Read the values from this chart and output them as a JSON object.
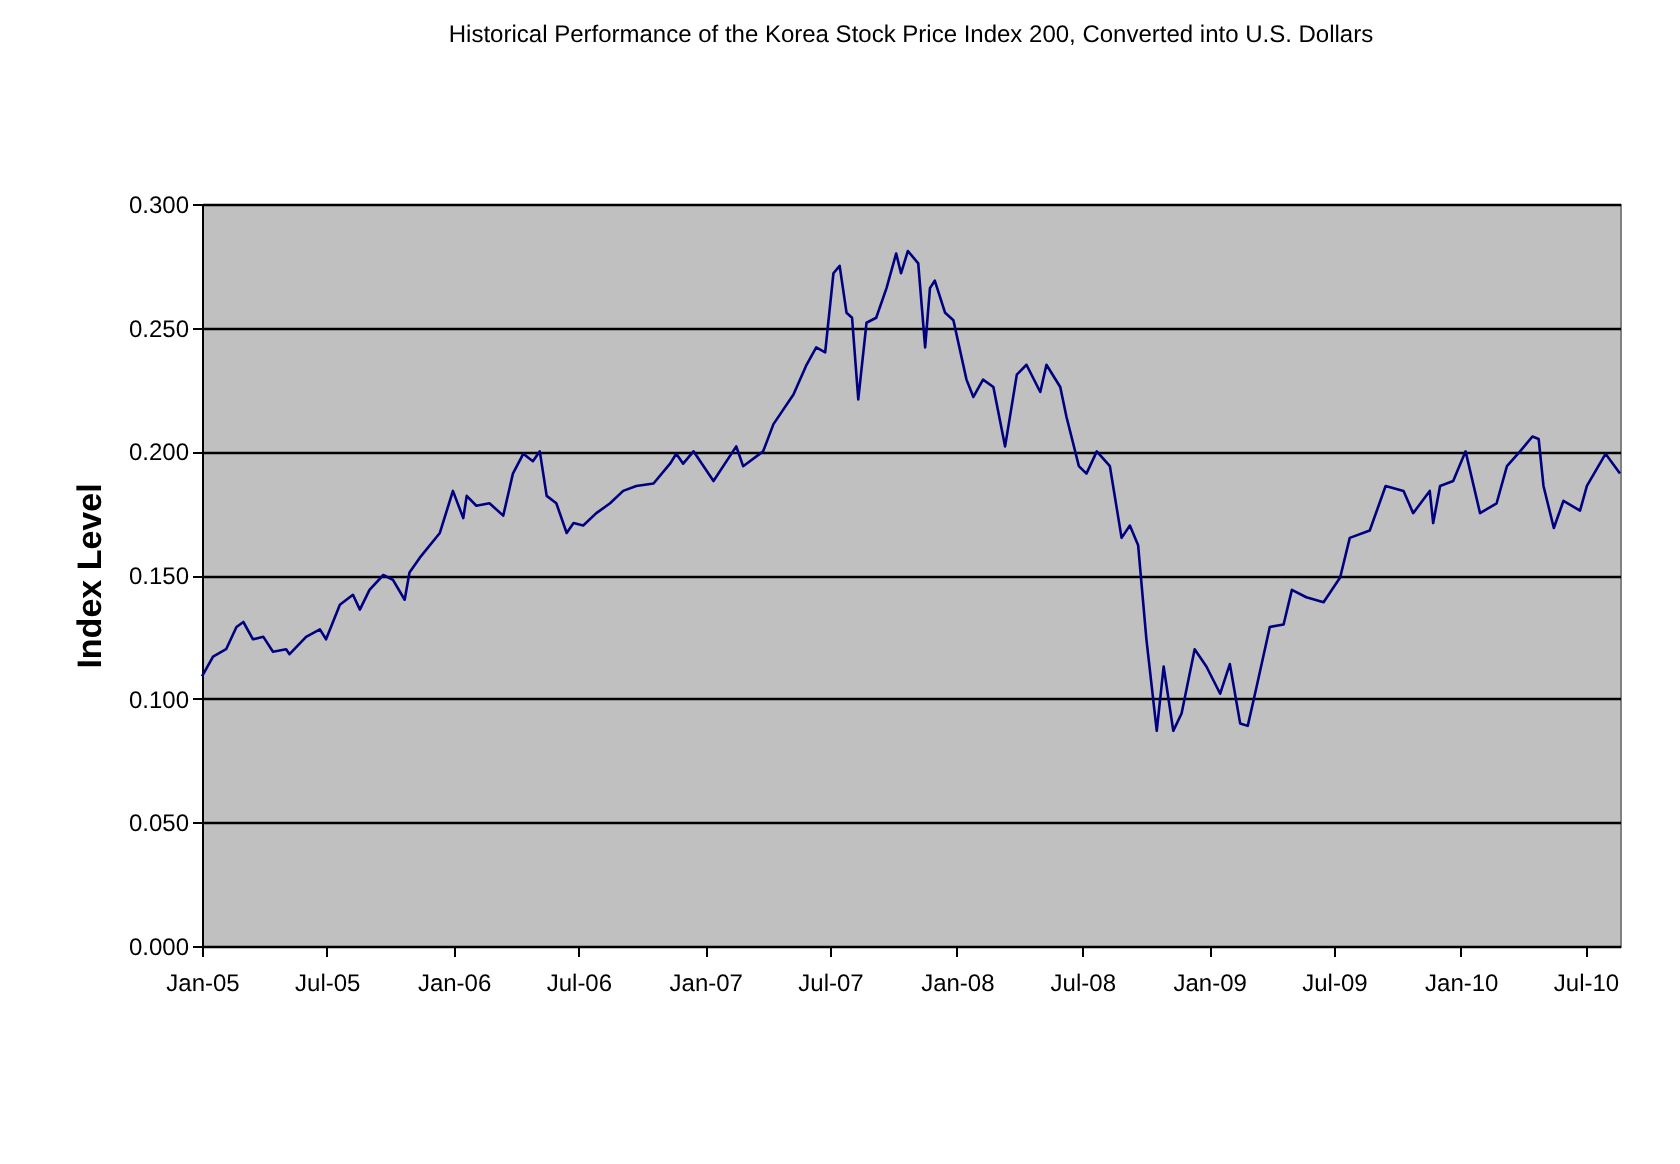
{
  "chart_data": {
    "type": "line",
    "title": "Historical Performance of the Korea Stock Price Index 200, Converted into U.S. Dollars",
    "ylabel": "Index Level",
    "x": [
      "2005-01-01",
      "2005-01-17",
      "2005-02-05",
      "2005-02-20",
      "2005-03-02",
      "2005-03-16",
      "2005-03-31",
      "2005-04-14",
      "2005-05-03",
      "2005-05-08",
      "2005-06-01",
      "2005-06-21",
      "2005-06-30",
      "2005-07-20",
      "2005-08-08",
      "2005-08-18",
      "2005-09-01",
      "2005-09-21",
      "2005-10-05",
      "2005-10-22",
      "2005-10-29",
      "2005-11-13",
      "2005-12-12",
      "2005-12-31",
      "2006-01-15",
      "2006-01-20",
      "2006-02-03",
      "2006-02-22",
      "2006-03-14",
      "2006-03-28",
      "2006-04-12",
      "2006-04-26",
      "2006-05-06",
      "2006-05-16",
      "2006-05-30",
      "2006-06-14",
      "2006-06-24",
      "2006-07-08",
      "2006-07-27",
      "2006-08-16",
      "2006-09-04",
      "2006-09-23",
      "2006-10-18",
      "2006-11-11",
      "2006-11-20",
      "2006-11-30",
      "2006-12-15",
      "2007-01-13",
      "2007-02-15",
      "2007-02-25",
      "2007-03-26",
      "2007-04-10",
      "2007-05-09",
      "2007-05-28",
      "2007-06-11",
      "2007-06-24",
      "2007-07-06",
      "2007-07-15",
      "2007-07-25",
      "2007-08-02",
      "2007-08-11",
      "2007-08-23",
      "2007-09-06",
      "2007-09-21",
      "2007-10-05",
      "2007-10-12",
      "2007-10-22",
      "2007-11-06",
      "2007-11-16",
      "2007-11-23",
      "2007-11-30",
      "2007-12-15",
      "2007-12-27",
      "2008-01-15",
      "2008-01-25",
      "2008-02-08",
      "2008-02-23",
      "2008-03-11",
      "2008-03-28",
      "2008-04-11",
      "2008-05-01",
      "2008-05-10",
      "2008-05-30",
      "2008-06-08",
      "2008-06-26",
      "2008-07-07",
      "2008-07-22",
      "2008-08-10",
      "2008-08-27",
      "2008-09-08",
      "2008-09-20",
      "2008-10-02",
      "2008-10-17",
      "2008-10-27",
      "2008-11-10",
      "2008-11-22",
      "2008-12-11",
      "2008-12-28",
      "2009-01-17",
      "2009-01-31",
      "2009-02-15",
      "2009-02-26",
      "2009-03-11",
      "2009-03-30",
      "2009-04-19",
      "2009-05-01",
      "2009-05-22",
      "2009-06-16",
      "2009-07-10",
      "2009-07-24",
      "2009-08-22",
      "2009-09-14",
      "2009-10-10",
      "2009-10-24",
      "2009-11-17",
      "2009-11-22",
      "2009-12-02",
      "2009-12-21",
      "2010-01-08",
      "2010-01-29",
      "2010-02-22",
      "2010-03-09",
      "2010-03-28",
      "2010-04-15",
      "2010-04-24",
      "2010-05-01",
      "2010-05-16",
      "2010-05-30",
      "2010-06-23",
      "2010-07-03",
      "2010-07-30",
      "2010-08-20"
    ],
    "series": [
      {
        "color": "#000080",
        "values": [
          0.109,
          0.117,
          0.12,
          0.129,
          0.131,
          0.124,
          0.125,
          0.119,
          0.12,
          0.118,
          0.125,
          0.128,
          0.124,
          0.138,
          0.142,
          0.136,
          0.144,
          0.15,
          0.148,
          0.14,
          0.151,
          0.157,
          0.167,
          0.184,
          0.173,
          0.182,
          0.178,
          0.179,
          0.174,
          0.191,
          0.199,
          0.196,
          0.2,
          0.182,
          0.179,
          0.167,
          0.171,
          0.17,
          0.175,
          0.179,
          0.184,
          0.186,
          0.187,
          0.195,
          0.199,
          0.195,
          0.2,
          0.188,
          0.202,
          0.194,
          0.2,
          0.211,
          0.223,
          0.235,
          0.242,
          0.24,
          0.272,
          0.275,
          0.256,
          0.254,
          0.221,
          0.252,
          0.254,
          0.266,
          0.28,
          0.272,
          0.281,
          0.276,
          0.242,
          0.266,
          0.269,
          0.256,
          0.253,
          0.229,
          0.222,
          0.229,
          0.226,
          0.202,
          0.231,
          0.235,
          0.224,
          0.235,
          0.226,
          0.214,
          0.194,
          0.191,
          0.2,
          0.194,
          0.165,
          0.17,
          0.162,
          0.124,
          0.087,
          0.113,
          0.087,
          0.094,
          0.12,
          0.113,
          0.102,
          0.114,
          0.09,
          0.089,
          0.105,
          0.129,
          0.13,
          0.144,
          0.141,
          0.139,
          0.149,
          0.165,
          0.168,
          0.186,
          0.184,
          0.175,
          0.184,
          0.171,
          0.186,
          0.188,
          0.2,
          0.175,
          0.179,
          0.194,
          0.2,
          0.206,
          0.205,
          0.186,
          0.169,
          0.18,
          0.176,
          0.186,
          0.199,
          0.191
        ]
      }
    ],
    "xlim": [
      "2005-01-01",
      "2010-08-20"
    ],
    "xticks": [
      {
        "value": "2005-01-01",
        "label": "Jan-05"
      },
      {
        "value": "2005-07-01",
        "label": "Jul-05"
      },
      {
        "value": "2006-01-01",
        "label": "Jan-06"
      },
      {
        "value": "2006-07-01",
        "label": "Jul-06"
      },
      {
        "value": "2007-01-01",
        "label": "Jan-07"
      },
      {
        "value": "2007-07-01",
        "label": "Jul-07"
      },
      {
        "value": "2008-01-01",
        "label": "Jan-08"
      },
      {
        "value": "2008-07-01",
        "label": "Jul-08"
      },
      {
        "value": "2009-01-01",
        "label": "Jan-09"
      },
      {
        "value": "2009-07-01",
        "label": "Jul-09"
      },
      {
        "value": "2010-01-01",
        "label": "Jan-10"
      },
      {
        "value": "2010-07-01",
        "label": "Jul-10"
      }
    ],
    "ylim": [
      0,
      0.3
    ],
    "yticks": [
      {
        "value": 0,
        "label": "0.000"
      },
      {
        "value": 0.05,
        "label": "0.050"
      },
      {
        "value": 0.1,
        "label": "0.100"
      },
      {
        "value": 0.15,
        "label": "0.150"
      },
      {
        "value": 0.2,
        "label": "0.200"
      },
      {
        "value": 0.25,
        "label": "0.250"
      },
      {
        "value": 0.3,
        "label": "0.300"
      }
    ],
    "grid": "y",
    "legend": false,
    "marker": "none",
    "line_style": "solid"
  }
}
